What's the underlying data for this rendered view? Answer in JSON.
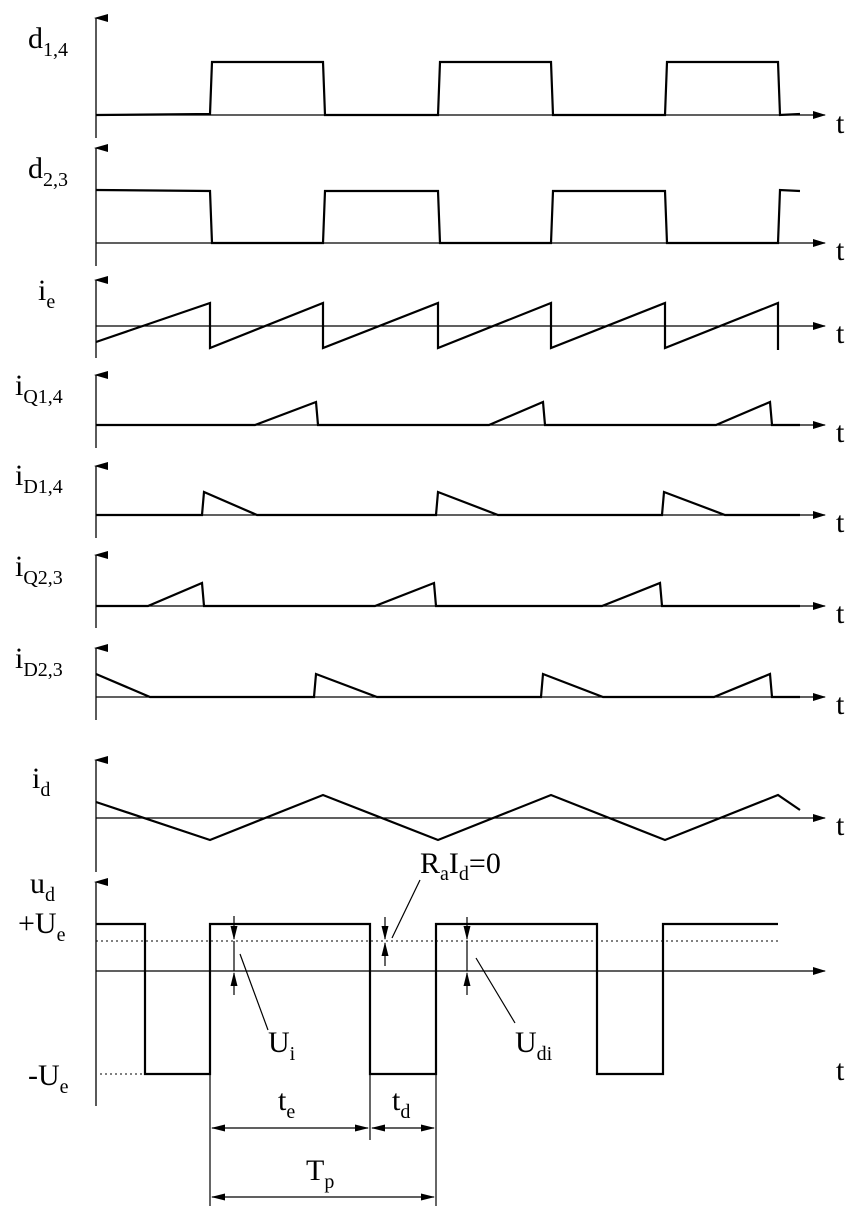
{
  "panels": [
    {
      "id": "d14",
      "label_main": "d",
      "label_sub": "1,4"
    },
    {
      "id": "d23",
      "label_main": "d",
      "label_sub": "2,3"
    },
    {
      "id": "ie",
      "label_main": "i",
      "label_sub": "e"
    },
    {
      "id": "iq14",
      "label_main": "i",
      "label_sub": "Q1,4"
    },
    {
      "id": "id14",
      "label_main": "i",
      "label_sub": "D1,4"
    },
    {
      "id": "iq23",
      "label_main": "i",
      "label_sub": "Q2,3"
    },
    {
      "id": "id23",
      "label_main": "i",
      "label_sub": "D2,3"
    },
    {
      "id": "id",
      "label_main": "i",
      "label_sub": "d"
    },
    {
      "id": "ud",
      "label_main": "u",
      "label_sub": "d"
    }
  ],
  "time_axis_label": "t",
  "levels": {
    "pos_main": "+U",
    "pos_sub": "e",
    "neg_main": "-U",
    "neg_sub": "e"
  },
  "annotations": {
    "ui_main": "U",
    "ui_sub": "i",
    "udi_main": "U",
    "udi_sub": "di",
    "raid_r": "R",
    "raid_a": "a",
    "raid_i": "I",
    "raid_d": "d",
    "raid_eq": "=0"
  },
  "dimensions": {
    "te_main": "t",
    "te_sub": "e",
    "td_main": "t",
    "td_sub": "d",
    "tp_main": "T",
    "tp_sub": "p"
  }
}
